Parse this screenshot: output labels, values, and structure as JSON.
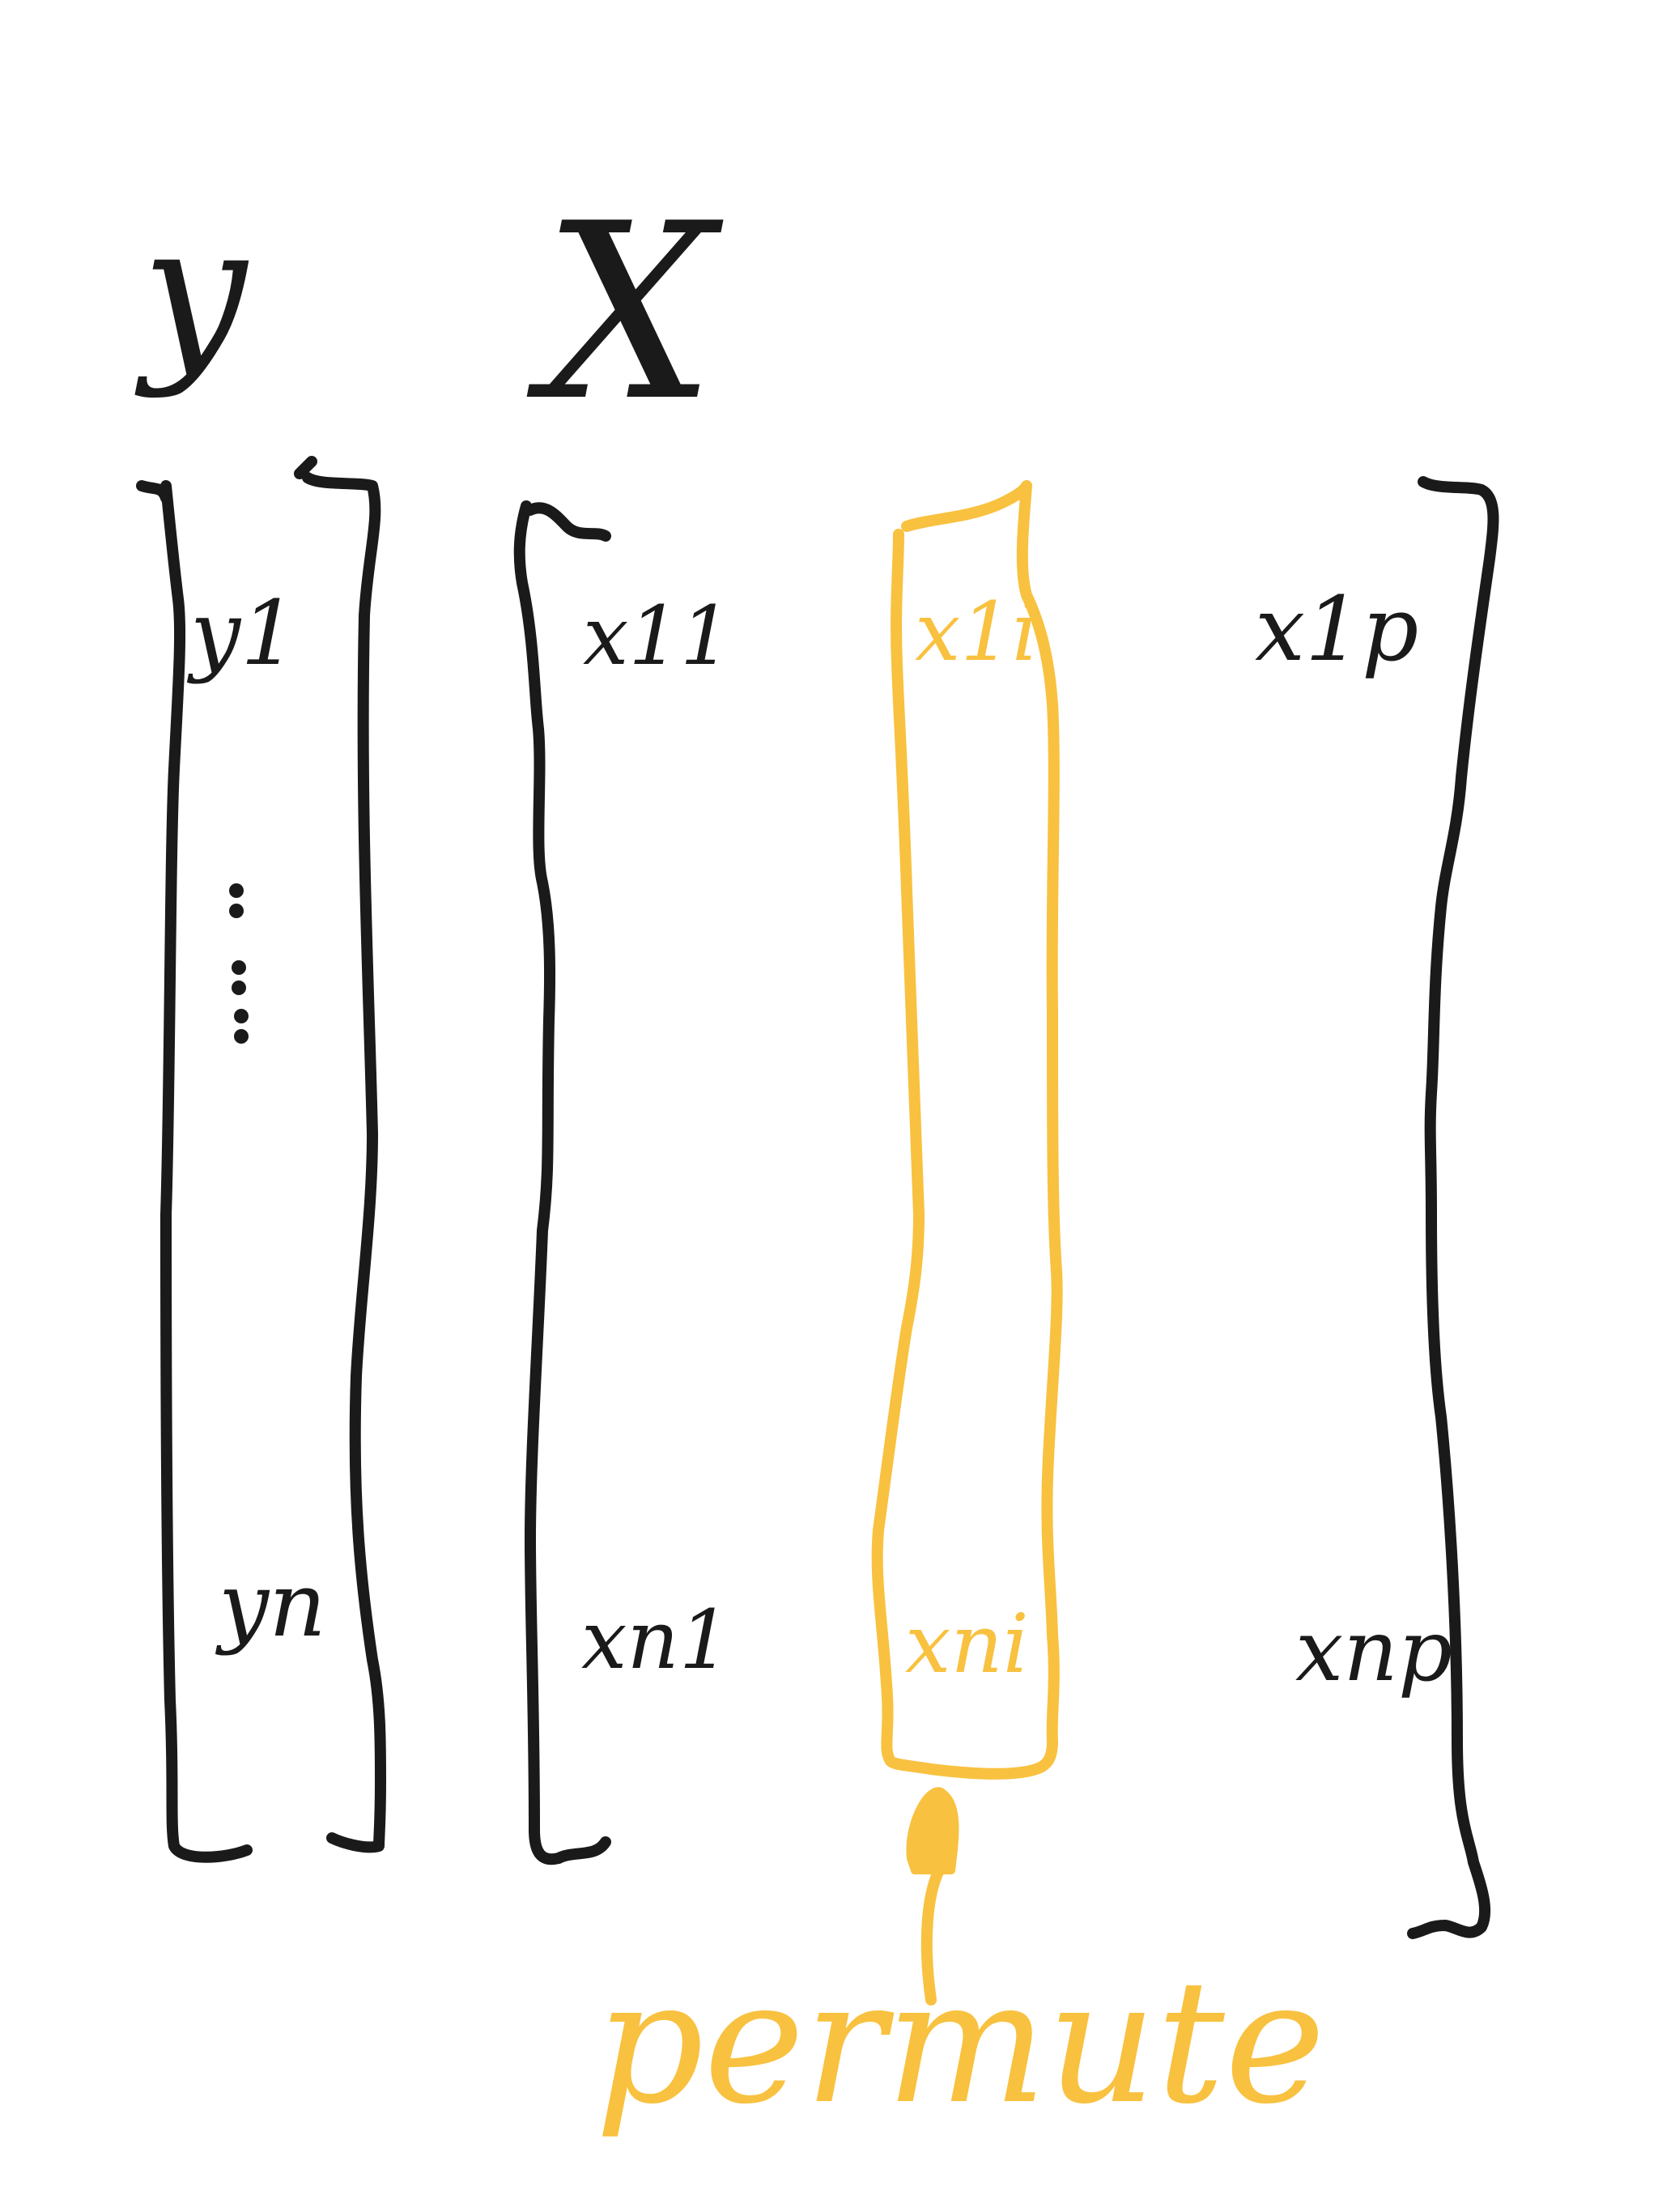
{
  "titles": {
    "y": "y",
    "X": "X"
  },
  "vector_y": {
    "top": "y1",
    "bottom": "yn"
  },
  "matrix_X": {
    "first_column": {
      "top": "x11",
      "bottom": "xn1"
    },
    "highlighted_column": {
      "top": "x1i",
      "bottom": "xni"
    },
    "last_column": {
      "top": "x1p",
      "bottom": "xnp"
    }
  },
  "annotation": {
    "label": "permute"
  },
  "colors": {
    "ink": "#1a1a1a",
    "highlight": "#f8c13f",
    "background": "#ffffff"
  }
}
